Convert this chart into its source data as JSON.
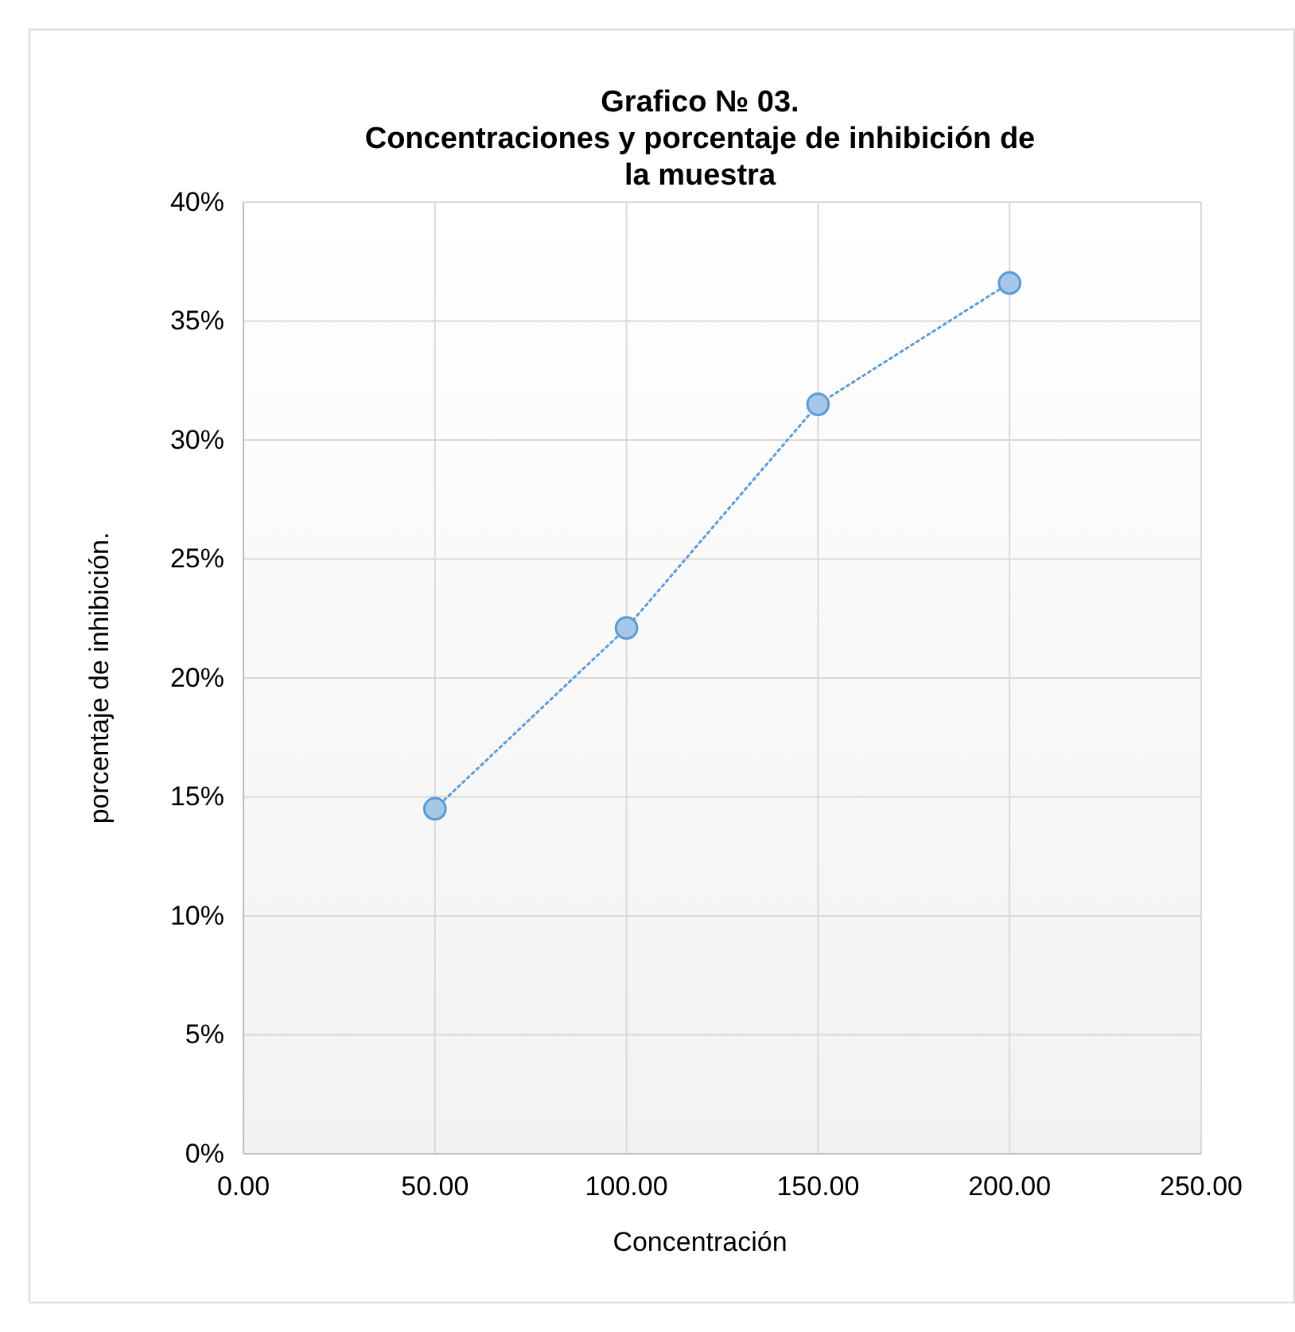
{
  "chart_data": {
    "type": "line",
    "title": "Grafico № 03.\nConcentraciones y porcentaje de inhibición de\nla muestra",
    "xlabel": "Concentración",
    "ylabel": "porcentaje de inhibición.",
    "x": [
      50,
      100,
      150,
      200
    ],
    "series": [
      {
        "color": "#5b9bd5",
        "values": [
          14.5,
          22.1,
          31.5,
          36.6
        ]
      }
    ],
    "xlim": [
      0,
      250
    ],
    "xticks": [
      {
        "value": 0,
        "label": "0.00"
      },
      {
        "value": 50,
        "label": "50.00"
      },
      {
        "value": 100,
        "label": "100.00"
      },
      {
        "value": 150,
        "label": "150.00"
      },
      {
        "value": 200,
        "label": "200.00"
      },
      {
        "value": 250,
        "label": "250.00"
      }
    ],
    "ylim": [
      0,
      40
    ],
    "yticks": [
      {
        "value": 0,
        "label": "0%"
      },
      {
        "value": 5,
        "label": "5%"
      },
      {
        "value": 10,
        "label": "10%"
      },
      {
        "value": 15,
        "label": "15%"
      },
      {
        "value": 20,
        "label": "20%"
      },
      {
        "value": 25,
        "label": "25%"
      },
      {
        "value": 30,
        "label": "30%"
      },
      {
        "value": 35,
        "label": "35%"
      },
      {
        "value": 40,
        "label": "40%"
      }
    ],
    "grid": true,
    "marker": "circle",
    "line_style": "dotted"
  }
}
